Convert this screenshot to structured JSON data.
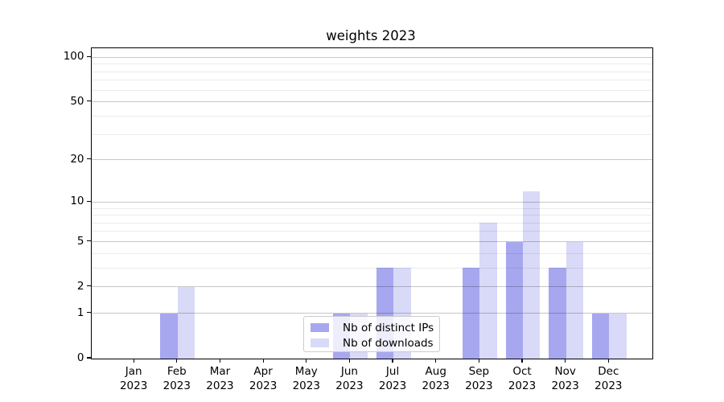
{
  "title": "weights 2023",
  "legend": {
    "items": [
      {
        "label": "Nb of distinct IPs",
        "color": "#a7a7f0"
      },
      {
        "label": "Nb of downloads",
        "color": "#d9d9f8"
      }
    ]
  },
  "chart_data": {
    "type": "bar",
    "title": "weights 2023",
    "categories": [
      "Jan",
      "Feb",
      "Mar",
      "Apr",
      "May",
      "Jun",
      "Jul",
      "Aug",
      "Sep",
      "Oct",
      "Nov",
      "Dec"
    ],
    "year_label": "2023",
    "series": [
      {
        "name": "Nb of distinct IPs",
        "color": "#a7a7f0",
        "values": [
          0,
          1,
          0,
          0,
          0,
          1,
          3,
          0,
          3,
          5,
          3,
          1
        ]
      },
      {
        "name": "Nb of downloads",
        "color": "#d9d9f8",
        "values": [
          0,
          2,
          0,
          0,
          0,
          1,
          3,
          0,
          7,
          12,
          5,
          1
        ]
      }
    ],
    "xlabel": "",
    "ylabel": "",
    "y_scale": "log10(1+y)",
    "y_ticks": [
      0,
      1,
      2,
      5,
      10,
      20,
      50,
      100
    ],
    "y_minor_ticks": [
      3,
      4,
      6,
      7,
      8,
      9,
      30,
      40,
      60,
      70,
      80,
      90
    ],
    "ylim": [
      0,
      115
    ],
    "xlim": [
      -1,
      12
    ],
    "bar_width": 0.4,
    "grid": true,
    "legend_position": "lower center",
    "colors": {
      "major_grid": "rgba(0,0,0,0.22)",
      "minor_grid": "rgba(0,0,0,0.08)",
      "spine": "#000000"
    }
  }
}
